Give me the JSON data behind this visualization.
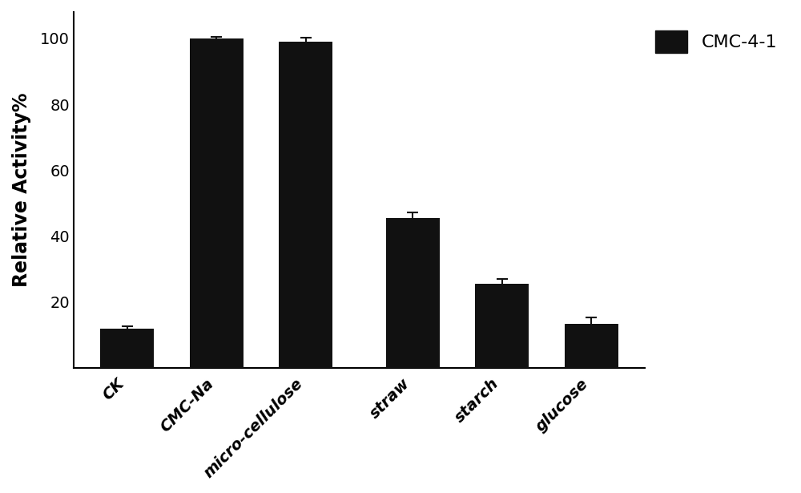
{
  "categories": [
    "CK",
    "CMC-Na",
    "micro-cellulose",
    "straw",
    "starch",
    "glucose"
  ],
  "values": [
    12.0,
    100.0,
    99.0,
    45.5,
    25.5,
    13.5
  ],
  "errors": [
    0.8,
    0.5,
    1.2,
    1.8,
    1.5,
    1.8
  ],
  "bar_color": "#111111",
  "bar_width": 0.6,
  "ylabel": "Relative Activity%",
  "ylim": [
    0,
    108
  ],
  "yticks": [
    20,
    40,
    60,
    80,
    100
  ],
  "legend_label": "CMC-4-1",
  "legend_color": "#111111",
  "background_color": "#ffffff",
  "ylabel_fontsize": 17,
  "tick_fontsize": 14,
  "legend_fontsize": 16,
  "spine_linewidth": 1.5,
  "error_capsize": 5,
  "error_linewidth": 1.5,
  "error_color": "#111111",
  "x_positions": [
    0,
    1,
    2,
    3.2,
    4.2,
    5.2
  ]
}
